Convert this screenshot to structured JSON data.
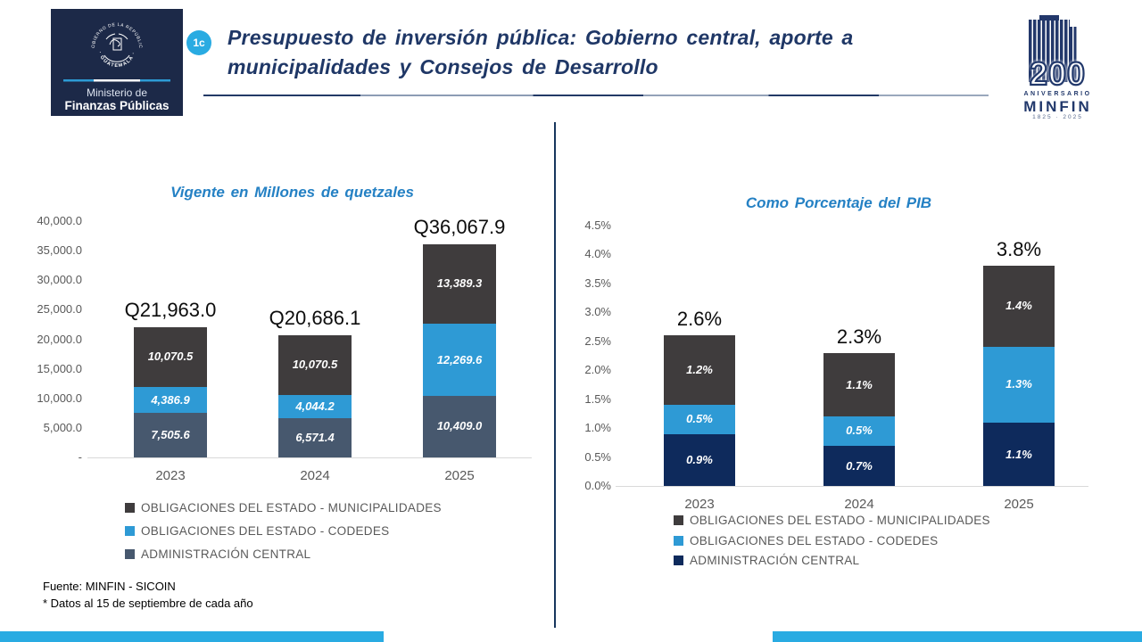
{
  "header": {
    "badge": "1c",
    "title_line1": "Presupuesto de inversión pública: Gobierno central, aporte a",
    "title_line2": "municipalidades y Consejos de Desarrollo",
    "logo": {
      "seal_top": "GOBIERNO DE LA REPÚBLICA",
      "seal_bottom": "· GUATEMALA ·",
      "org_line1": "Ministerio de",
      "org_line2": "Finanzas Públicas"
    },
    "anniversary": {
      "number": "200",
      "label": "ANIVERSARIO",
      "org": "MINFIN",
      "years": "1825 · 2025"
    }
  },
  "chart_data": [
    {
      "type": "stacked-bar",
      "title": "Vigente en Millones de quetzales",
      "categories": [
        "2023",
        "2024",
        "2025"
      ],
      "series": [
        {
          "name": "ADMINISTRACIÓN CENTRAL",
          "color": "#47586E",
          "values": [
            7505.6,
            6571.4,
            10409.0
          ],
          "labels": [
            "7,505.6",
            "6,571.4",
            "10,409.0"
          ]
        },
        {
          "name": "OBLIGACIONES DEL ESTADO - CODEDES",
          "color": "#2E9AD5",
          "values": [
            4386.9,
            4044.2,
            12269.6
          ],
          "labels": [
            "4,386.9",
            "4,044.2",
            "12,269.6"
          ]
        },
        {
          "name": "OBLIGACIONES DEL ESTADO - MUNICIPALIDADES",
          "color": "#3F3C3D",
          "values": [
            10070.5,
            10070.5,
            13389.3
          ],
          "labels": [
            "10,070.5",
            "10,070.5",
            "13,389.3"
          ]
        }
      ],
      "totals": [
        21963.0,
        20686.1,
        36067.9
      ],
      "total_labels": [
        "Q21,963.0",
        "Q20,686.1",
        "Q36,067.9"
      ],
      "ylim": [
        0,
        40000
      ],
      "y_ticks": [
        "40,000.0",
        "35,000.0",
        "30,000.0",
        "25,000.0",
        "20,000.0",
        "15,000.0",
        "10,000.0",
        "5,000.0",
        "-"
      ],
      "grid": false,
      "legend_position": "bottom-left",
      "legend": [
        "OBLIGACIONES DEL ESTADO - MUNICIPALIDADES",
        "OBLIGACIONES DEL ESTADO - CODEDES",
        "ADMINISTRACIÓN CENTRAL"
      ],
      "legend_colors": [
        "#3F3C3D",
        "#2E9AD5",
        "#47586E"
      ]
    },
    {
      "type": "stacked-bar",
      "title": "Como Porcentaje del PIB",
      "categories": [
        "2023",
        "2024",
        "2025"
      ],
      "series": [
        {
          "name": "ADMINISTRACIÓN CENTRAL",
          "color": "#0E2A5C",
          "values": [
            0.9,
            0.7,
            1.1
          ],
          "labels": [
            "0.9%",
            "0.7%",
            "1.1%"
          ]
        },
        {
          "name": "OBLIGACIONES DEL ESTADO - CODEDES",
          "color": "#2E9AD5",
          "values": [
            0.5,
            0.5,
            1.3
          ],
          "labels": [
            "0.5%",
            "0.5%",
            "1.3%"
          ]
        },
        {
          "name": "OBLIGACIONES DEL ESTADO - MUNICIPALIDADES",
          "color": "#3F3C3D",
          "values": [
            1.2,
            1.1,
            1.4
          ],
          "labels": [
            "1.2%",
            "1.1%",
            "1.4%"
          ]
        }
      ],
      "totals": [
        2.6,
        2.3,
        3.8
      ],
      "total_labels": [
        "2.6%",
        "2.3%",
        "3.8%"
      ],
      "ylim": [
        0,
        4.5
      ],
      "y_ticks": [
        "4.5%",
        "4.0%",
        "3.5%",
        "3.0%",
        "2.5%",
        "2.0%",
        "1.5%",
        "1.0%",
        "0.5%",
        "0.0%"
      ],
      "grid": false,
      "legend_position": "bottom-left",
      "legend": [
        "OBLIGACIONES DEL ESTADO - MUNICIPALIDADES",
        "OBLIGACIONES DEL ESTADO - CODEDES",
        "ADMINISTRACIÓN CENTRAL"
      ],
      "legend_colors": [
        "#3F3C3D",
        "#2E9AD5",
        "#0E2A5C"
      ]
    }
  ],
  "footer": {
    "source": "Fuente: MINFIN - SICOIN",
    "note": "* Datos al 15 de septiembre de cada año"
  },
  "colors": {
    "accent_cyan": "#29ABE2",
    "navy": "#1F3864",
    "logo_background": "#1C2948",
    "chart_title_blue": "#2581C4",
    "axis_gray": "#595959",
    "seg_municipalidades": "#3F3C3D",
    "seg_codedes": "#2E9AD5",
    "seg_admin_left": "#47586E",
    "seg_admin_right": "#0E2A5C"
  }
}
